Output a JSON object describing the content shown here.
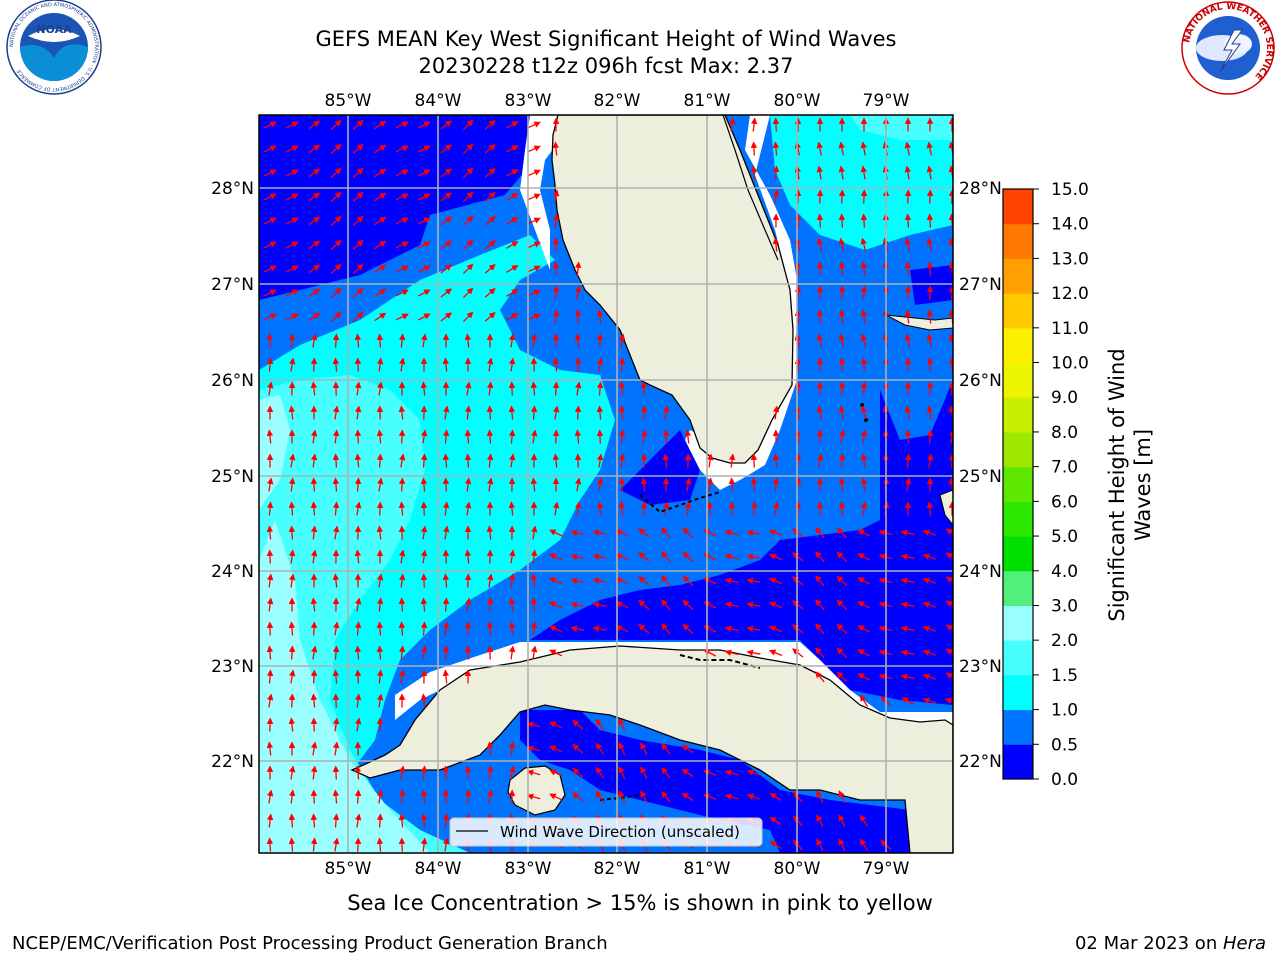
{
  "header": {
    "title_line1": "GEFS MEAN Key West Significant Height of Wind Waves",
    "title_line2": "20230228 t12z 096h fcst   Max: 2.37"
  },
  "logos": {
    "left": "NOAA",
    "left_ring_text": "NATIONAL OCEANIC AND ATMOSPHERIC ADMINISTRATION · U.S. DEPARTMENT OF COMMERCE",
    "right_ring_text": "NATIONAL WEATHER SERVICE"
  },
  "map": {
    "lon_labels": [
      "85°W",
      "84°W",
      "83°W",
      "82°W",
      "81°W",
      "80°W",
      "79°W"
    ],
    "lat_labels": [
      "28°N",
      "27°N",
      "26°N",
      "25°N",
      "24°N",
      "23°N",
      "22°N"
    ],
    "legend_label": "Wind Wave Direction (unscaled)",
    "land_color": "#eeeedd",
    "arrow_color": "#ff0000"
  },
  "colorbar": {
    "label": "Significant Height of Wind Waves [m]",
    "ticks": [
      "0.0",
      "0.5",
      "1.0",
      "1.5",
      "2.0",
      "3.0",
      "4.0",
      "5.0",
      "6.0",
      "7.0",
      "8.0",
      "9.0",
      "10.0",
      "11.0",
      "12.0",
      "13.0",
      "14.0",
      "15.0"
    ],
    "colors": [
      "#0000ff",
      "#0073ff",
      "#00ffff",
      "#48ffff",
      "#9bffff",
      "#50f07a",
      "#00e000",
      "#2ee800",
      "#5ee800",
      "#9ee800",
      "#c8ee00",
      "#ecf400",
      "#fcf000",
      "#ffc800",
      "#ffa000",
      "#ff7800",
      "#ff4400",
      "#ff0000"
    ]
  },
  "footer": {
    "ice_note": "Sea Ice Concentration > 15% is shown in pink to yellow",
    "left": "NCEP/EMC/Verification Post Processing Product Generation Branch",
    "right_date": "02 Mar 2023 on ",
    "right_host": "Hera"
  }
}
